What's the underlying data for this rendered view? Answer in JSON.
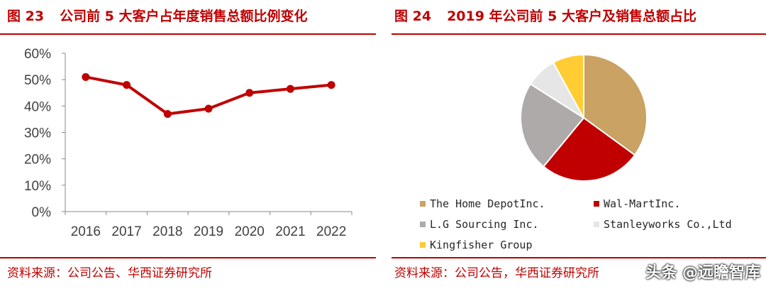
{
  "figure_left": {
    "title_num": "图 23",
    "title_text": "公司前 5 大客户占年度销售总额比例变化",
    "source": "资料来源：公司公告、华西证券研究所"
  },
  "figure_right": {
    "title_num": "图 24",
    "title_text": "2019 年公司前 5 大客户及销售总额占比",
    "source": "资料来源：公司公告，华西证券研究所"
  },
  "watermark": "头条 @远瞻智库",
  "chart_data": [
    {
      "type": "line",
      "categories": [
        "2016",
        "2017",
        "2018",
        "2019",
        "2020",
        "2021",
        "2022"
      ],
      "series": [
        {
          "values": [
            51,
            48,
            37,
            39,
            45,
            46.5,
            48
          ],
          "color": "#c00000"
        }
      ],
      "ylim": [
        0,
        60
      ],
      "yticks": [
        "0%",
        "10%",
        "20%",
        "30%",
        "40%",
        "50%",
        "60%"
      ],
      "grid": false
    },
    {
      "type": "pie",
      "labels": [
        "The Home DepotInc.",
        "Wal-MartInc.",
        "L.G Sourcing Inc.",
        "Stanleyworks Co.,Ltd",
        "Kingfisher Group"
      ],
      "values": [
        35,
        26,
        23,
        8,
        8
      ],
      "colors": [
        "#c9a264",
        "#c00000",
        "#aeaaaa",
        "#e6e6e6",
        "#ffcc33"
      ],
      "legend_position": "bottom"
    }
  ]
}
